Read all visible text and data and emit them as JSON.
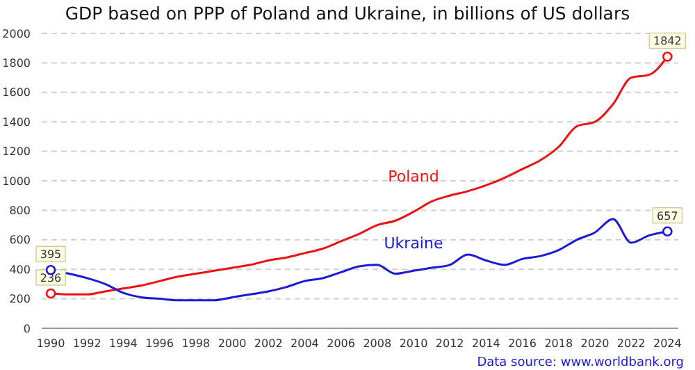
{
  "chart_data": {
    "type": "line",
    "title": "GDP based on PPP of Poland and Ukraine, in billions of US dollars",
    "x": [
      1990,
      1991,
      1992,
      1993,
      1994,
      1995,
      1996,
      1997,
      1998,
      1999,
      2000,
      2001,
      2002,
      2003,
      2004,
      2005,
      2006,
      2007,
      2008,
      2009,
      2010,
      2011,
      2012,
      2013,
      2014,
      2015,
      2016,
      2017,
      2018,
      2019,
      2020,
      2021,
      2022,
      2023,
      2024
    ],
    "series": [
      {
        "name": "Poland",
        "color": "#ee1111",
        "values": [
          236,
          230,
          230,
          250,
          270,
          290,
          320,
          350,
          370,
          390,
          410,
          430,
          460,
          480,
          510,
          540,
          590,
          640,
          700,
          730,
          790,
          860,
          900,
          930,
          970,
          1020,
          1080,
          1140,
          1230,
          1370,
          1400,
          1520,
          1700,
          1720,
          1842
        ],
        "value_labels": [
          "236",
          null,
          null,
          null,
          null,
          null,
          null,
          null,
          null,
          null,
          null,
          null,
          null,
          null,
          null,
          null,
          null,
          null,
          null,
          null,
          null,
          null,
          null,
          null,
          null,
          null,
          null,
          null,
          null,
          null,
          null,
          null,
          null,
          null,
          "1842"
        ]
      },
      {
        "name": "Ukraine",
        "color": "#1a1ad6",
        "values": [
          395,
          370,
          340,
          300,
          240,
          210,
          200,
          190,
          190,
          190,
          210,
          230,
          250,
          280,
          320,
          340,
          380,
          420,
          430,
          370,
          390,
          410,
          430,
          500,
          460,
          430,
          470,
          490,
          530,
          600,
          650,
          740,
          580,
          630,
          657
        ],
        "value_labels": [
          "395",
          null,
          null,
          null,
          null,
          null,
          null,
          null,
          null,
          null,
          null,
          null,
          null,
          null,
          null,
          null,
          null,
          null,
          null,
          null,
          null,
          null,
          null,
          null,
          null,
          null,
          null,
          null,
          null,
          null,
          null,
          null,
          null,
          null,
          "657"
        ]
      }
    ],
    "xlim": [
      1989.5,
      2024.6
    ],
    "xticks": [
      1990,
      1992,
      1994,
      1996,
      1998,
      2000,
      2002,
      2004,
      2006,
      2008,
      2010,
      2012,
      2014,
      2016,
      2018,
      2020,
      2022,
      2024
    ],
    "ylim": [
      0,
      2000
    ],
    "yticks": [
      0,
      200,
      400,
      600,
      800,
      1000,
      1200,
      1400,
      1600,
      1800,
      2000
    ],
    "grid": "y",
    "annotations": [
      "Data source: www.worldbank.org"
    ]
  }
}
